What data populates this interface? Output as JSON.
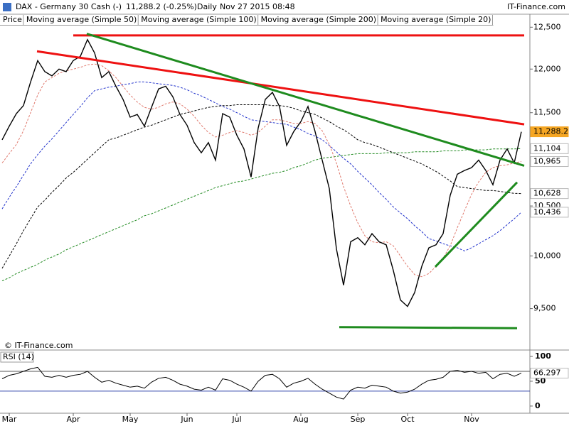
{
  "chart_data": [
    {
      "type": "line",
      "title": "DAX - Germany 30 Cash (-)",
      "quote": "11,288.2 (-0.25%)",
      "interval": "Daily",
      "timestamp": "Nov 27 2015 08:48",
      "source": "IT-Finance.com",
      "copyright": "© IT-Finance.com",
      "log_scale": true,
      "categories": [
        null,
        "Mar",
        null,
        null,
        null,
        null,
        null,
        null,
        null,
        null,
        "Apr",
        null,
        null,
        null,
        null,
        null,
        null,
        null,
        "May",
        null,
        null,
        null,
        null,
        null,
        null,
        null,
        "Jun",
        null,
        null,
        null,
        null,
        null,
        null,
        "Jul",
        null,
        null,
        null,
        null,
        null,
        null,
        null,
        null,
        "Aug",
        null,
        null,
        null,
        null,
        null,
        null,
        null,
        "Sep",
        null,
        null,
        null,
        null,
        null,
        null,
        "Oct",
        null,
        null,
        null,
        null,
        null,
        null,
        null,
        null,
        "Nov",
        null,
        null,
        null,
        null,
        null,
        null,
        null
      ],
      "series": [
        {
          "name": "Price",
          "color": "#000000",
          "dashed": false,
          "tag": "11,288.2",
          "tag_color": "#f5a623",
          "values": [
            11200,
            11350,
            11490,
            11580,
            11850,
            12100,
            11970,
            11920,
            12000,
            11970,
            12100,
            12150,
            12350,
            12190,
            11900,
            11970,
            11800,
            11650,
            11450,
            11480,
            11350,
            11560,
            11770,
            11800,
            11680,
            11480,
            11360,
            11170,
            11060,
            11170,
            10980,
            11490,
            11450,
            11250,
            11100,
            10800,
            11330,
            11650,
            11730,
            11570,
            11140,
            11290,
            11400,
            11570,
            11290,
            10980,
            10680,
            10070,
            9720,
            10140,
            10180,
            10110,
            10220,
            10140,
            10110,
            9860,
            9580,
            9520,
            9650,
            9900,
            10080,
            10110,
            10220,
            10610,
            10830,
            10870,
            10900,
            10980,
            10870,
            10720,
            10980,
            11100,
            10950,
            11288.2
          ]
        },
        {
          "name": "Moving average (Simple 50)",
          "color": "#2233cc",
          "dashed": true,
          "tag": "10,436",
          "values": [
            10470,
            10590,
            10700,
            10820,
            10940,
            11040,
            11130,
            11210,
            11300,
            11390,
            11480,
            11570,
            11670,
            11750,
            11770,
            11790,
            11800,
            11820,
            11830,
            11850,
            11850,
            11840,
            11830,
            11820,
            11810,
            11790,
            11760,
            11720,
            11690,
            11650,
            11610,
            11570,
            11540,
            11500,
            11460,
            11420,
            11410,
            11400,
            11390,
            11380,
            11370,
            11340,
            11310,
            11270,
            11240,
            11200,
            11140,
            11070,
            11000,
            10940,
            10860,
            10790,
            10720,
            10640,
            10570,
            10490,
            10430,
            10370,
            10300,
            10240,
            10170,
            10150,
            10120,
            10100,
            10080,
            10050,
            10080,
            10120,
            10160,
            10200,
            10250,
            10310,
            10370,
            10436
          ]
        },
        {
          "name": "Moving average (Simple 100)",
          "color": "#000000",
          "dashed": true,
          "tag": "10,628",
          "values": [
            9880,
            10000,
            10120,
            10250,
            10370,
            10490,
            10560,
            10640,
            10710,
            10790,
            10850,
            10920,
            10990,
            11060,
            11130,
            11200,
            11220,
            11250,
            11280,
            11310,
            11340,
            11360,
            11390,
            11420,
            11450,
            11480,
            11500,
            11520,
            11540,
            11560,
            11570,
            11580,
            11580,
            11590,
            11590,
            11590,
            11590,
            11590,
            11580,
            11580,
            11570,
            11550,
            11520,
            11500,
            11480,
            11440,
            11400,
            11350,
            11310,
            11260,
            11200,
            11170,
            11150,
            11120,
            11090,
            11060,
            11030,
            11000,
            10970,
            10940,
            10900,
            10860,
            10810,
            10760,
            10700,
            10690,
            10680,
            10670,
            10660,
            10660,
            10650,
            10640,
            10630,
            10628
          ]
        },
        {
          "name": "Moving average (Simple 200)",
          "color": "#228b22",
          "dashed": true,
          "tag": "11,104",
          "values": [
            9760,
            9790,
            9830,
            9860,
            9890,
            9920,
            9960,
            9990,
            10020,
            10060,
            10090,
            10120,
            10150,
            10180,
            10210,
            10240,
            10270,
            10300,
            10330,
            10360,
            10400,
            10420,
            10450,
            10480,
            10510,
            10540,
            10570,
            10600,
            10630,
            10660,
            10690,
            10710,
            10730,
            10750,
            10760,
            10780,
            10800,
            10820,
            10840,
            10850,
            10870,
            10900,
            10920,
            10950,
            10980,
            11000,
            11010,
            11020,
            11030,
            11040,
            11050,
            11050,
            11050,
            11050,
            11060,
            11060,
            11060,
            11060,
            11070,
            11070,
            11070,
            11070,
            11080,
            11080,
            11080,
            11090,
            11090,
            11090,
            11090,
            11100,
            11100,
            11100,
            11100,
            11104
          ]
        },
        {
          "name": "Moving average (Simple 20)",
          "color": "#e07a6e",
          "dashed": true,
          "tag": "10,965",
          "values": [
            10950,
            11050,
            11150,
            11300,
            11500,
            11700,
            11850,
            11900,
            11950,
            11980,
            12000,
            12020,
            12050,
            12060,
            12040,
            11980,
            11900,
            11800,
            11700,
            11620,
            11560,
            11540,
            11560,
            11600,
            11620,
            11600,
            11540,
            11460,
            11360,
            11280,
            11230,
            11250,
            11280,
            11300,
            11280,
            11250,
            11280,
            11350,
            11420,
            11420,
            11400,
            11380,
            11380,
            11400,
            11380,
            11300,
            11150,
            10950,
            10700,
            10500,
            10330,
            10200,
            10140,
            10130,
            10140,
            10100,
            10000,
            9900,
            9820,
            9800,
            9830,
            9900,
            9980,
            10100,
            10280,
            10450,
            10620,
            10750,
            10850,
            10900,
            10920,
            10930,
            10950,
            10965
          ]
        }
      ],
      "trendlines": [
        {
          "color": "#ee1111",
          "from": [
            10,
            12400
          ],
          "to": [
            73.4,
            12400
          ]
        },
        {
          "color": "#ee1111",
          "from": [
            4.9,
            12210
          ],
          "to": [
            73.4,
            11370
          ]
        },
        {
          "color": "#1e8b1e",
          "from": [
            11.9,
            12420
          ],
          "to": [
            73.4,
            10920
          ]
        },
        {
          "color": "#1e8b1e",
          "from": [
            47.4,
            9330
          ],
          "to": [
            72.4,
            9320
          ]
        },
        {
          "color": "#1e8b1e",
          "from": [
            60.9,
            9895
          ],
          "to": [
            72.4,
            10745
          ]
        }
      ],
      "ylim": [
        9130,
        12520
      ],
      "yticks": [
        {
          "value": 9500,
          "label": "9,500"
        },
        {
          "value": 10000,
          "label": "10,000"
        },
        {
          "value": 10500,
          "label": "10,500"
        },
        {
          "value": 11500,
          "label": "11,500"
        },
        {
          "value": 12000,
          "label": "12,000"
        },
        {
          "value": 12500,
          "label": "12,500"
        }
      ]
    },
    {
      "type": "line",
      "title": "RSI (14)",
      "series": [
        {
          "name": "RSI (14)",
          "color": "#000000",
          "tag": "66.297",
          "values": [
            55,
            62,
            65,
            70,
            75,
            78,
            60,
            58,
            62,
            58,
            62,
            64,
            70,
            58,
            48,
            52,
            46,
            42,
            38,
            40,
            36,
            48,
            56,
            58,
            52,
            44,
            40,
            34,
            32,
            38,
            32,
            55,
            52,
            44,
            38,
            30,
            50,
            62,
            64,
            55,
            38,
            46,
            50,
            56,
            44,
            34,
            26,
            18,
            14,
            32,
            38,
            36,
            42,
            40,
            38,
            30,
            26,
            28,
            34,
            44,
            52,
            54,
            58,
            70,
            72,
            68,
            70,
            66,
            68,
            55,
            64,
            66,
            60,
            66.297
          ]
        }
      ],
      "levels": [
        {
          "value": 70,
          "color": "#555555"
        },
        {
          "value": 30,
          "color": "#3344aa"
        }
      ],
      "ylim": [
        -13,
        110
      ],
      "yticks": [
        0,
        50,
        100
      ]
    }
  ]
}
